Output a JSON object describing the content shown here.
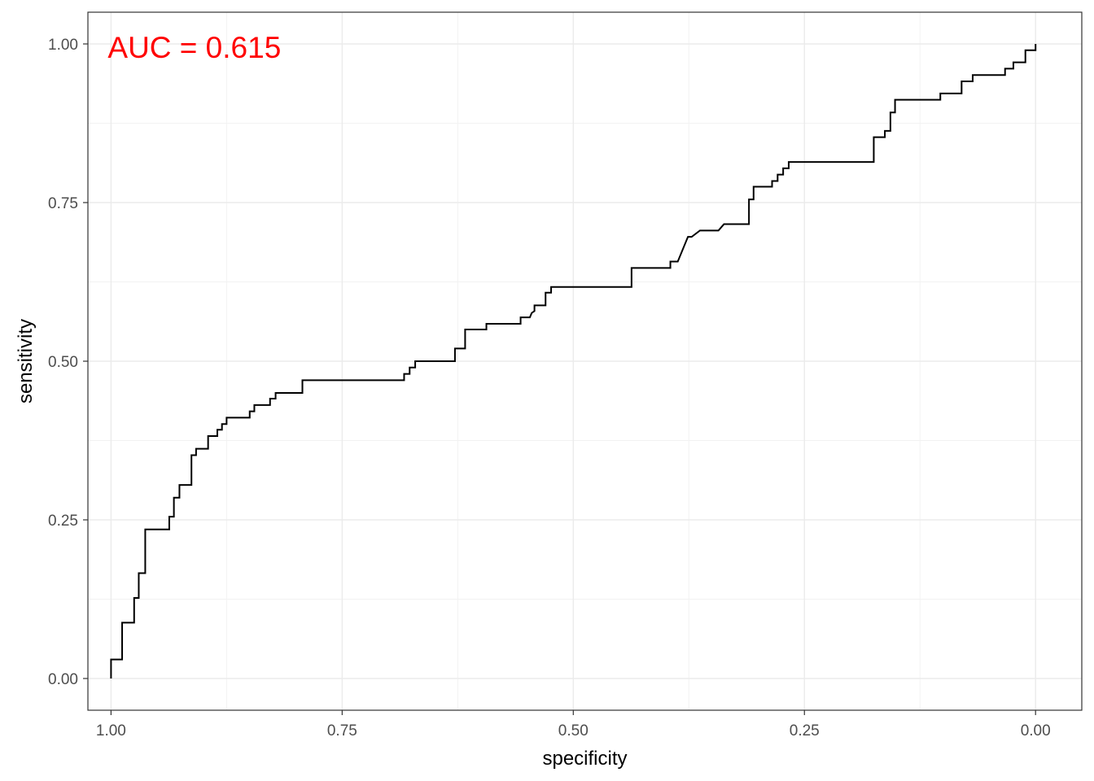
{
  "chart_data": {
    "type": "line",
    "xlabel": "specificity",
    "ylabel": "sensitivity",
    "xlim": [
      1.025,
      -0.05
    ],
    "ylim": [
      -0.05,
      1.05
    ],
    "x_reversed": true,
    "x_ticks": [
      1.0,
      0.75,
      0.5,
      0.25,
      0.0
    ],
    "x_tick_labels": [
      "1.00",
      "0.75",
      "0.50",
      "0.25",
      "0.00"
    ],
    "y_ticks": [
      0.0,
      0.25,
      0.5,
      0.75,
      1.0
    ],
    "y_tick_labels": [
      "0.00",
      "0.25",
      "0.50",
      "0.75",
      "1.00"
    ],
    "x_minor": [
      0.875,
      0.625,
      0.375,
      0.125
    ],
    "y_minor": [
      0.125,
      0.375,
      0.625,
      0.875
    ],
    "grid": true,
    "legend": "none",
    "annotation": {
      "text": "AUC =  0.615",
      "color": "#ff0000",
      "x": 1.0,
      "y": 0.995
    },
    "series": [
      {
        "color": "#000000",
        "points": [
          [
            1.0,
            0.0
          ],
          [
            1.0,
            0.03
          ],
          [
            0.988,
            0.03
          ],
          [
            0.988,
            0.088
          ],
          [
            0.975,
            0.088
          ],
          [
            0.975,
            0.127
          ],
          [
            0.97,
            0.127
          ],
          [
            0.97,
            0.166
          ],
          [
            0.963,
            0.166
          ],
          [
            0.963,
            0.235
          ],
          [
            0.937,
            0.235
          ],
          [
            0.937,
            0.255
          ],
          [
            0.932,
            0.255
          ],
          [
            0.932,
            0.285
          ],
          [
            0.926,
            0.285
          ],
          [
            0.926,
            0.305
          ],
          [
            0.913,
            0.305
          ],
          [
            0.913,
            0.352
          ],
          [
            0.908,
            0.352
          ],
          [
            0.908,
            0.362
          ],
          [
            0.895,
            0.362
          ],
          [
            0.895,
            0.382
          ],
          [
            0.885,
            0.382
          ],
          [
            0.885,
            0.392
          ],
          [
            0.88,
            0.392
          ],
          [
            0.88,
            0.401
          ],
          [
            0.875,
            0.401
          ],
          [
            0.875,
            0.411
          ],
          [
            0.85,
            0.411
          ],
          [
            0.85,
            0.421
          ],
          [
            0.845,
            0.421
          ],
          [
            0.845,
            0.431
          ],
          [
            0.828,
            0.431
          ],
          [
            0.828,
            0.441
          ],
          [
            0.822,
            0.441
          ],
          [
            0.822,
            0.45
          ],
          [
            0.793,
            0.45
          ],
          [
            0.793,
            0.47
          ],
          [
            0.683,
            0.47
          ],
          [
            0.683,
            0.48
          ],
          [
            0.677,
            0.48
          ],
          [
            0.677,
            0.49
          ],
          [
            0.671,
            0.49
          ],
          [
            0.671,
            0.5
          ],
          [
            0.628,
            0.5
          ],
          [
            0.628,
            0.52
          ],
          [
            0.617,
            0.52
          ],
          [
            0.617,
            0.55
          ],
          [
            0.594,
            0.55
          ],
          [
            0.594,
            0.559
          ],
          [
            0.557,
            0.559
          ],
          [
            0.557,
            0.569
          ],
          [
            0.547,
            0.569
          ],
          [
            0.545,
            0.576
          ],
          [
            0.542,
            0.579
          ],
          [
            0.542,
            0.588
          ],
          [
            0.53,
            0.588
          ],
          [
            0.53,
            0.608
          ],
          [
            0.524,
            0.608
          ],
          [
            0.524,
            0.617
          ],
          [
            0.437,
            0.617
          ],
          [
            0.437,
            0.647
          ],
          [
            0.395,
            0.647
          ],
          [
            0.395,
            0.657
          ],
          [
            0.387,
            0.657
          ],
          [
            0.376,
            0.696
          ],
          [
            0.372,
            0.696
          ],
          [
            0.363,
            0.706
          ],
          [
            0.343,
            0.706
          ],
          [
            0.337,
            0.716
          ],
          [
            0.31,
            0.716
          ],
          [
            0.31,
            0.755
          ],
          [
            0.305,
            0.755
          ],
          [
            0.305,
            0.775
          ],
          [
            0.285,
            0.775
          ],
          [
            0.285,
            0.784
          ],
          [
            0.279,
            0.784
          ],
          [
            0.279,
            0.794
          ],
          [
            0.273,
            0.794
          ],
          [
            0.273,
            0.804
          ],
          [
            0.267,
            0.804
          ],
          [
            0.267,
            0.814
          ],
          [
            0.175,
            0.814
          ],
          [
            0.175,
            0.853
          ],
          [
            0.163,
            0.853
          ],
          [
            0.163,
            0.863
          ],
          [
            0.157,
            0.863
          ],
          [
            0.157,
            0.892
          ],
          [
            0.152,
            0.892
          ],
          [
            0.152,
            0.912
          ],
          [
            0.103,
            0.912
          ],
          [
            0.103,
            0.922
          ],
          [
            0.08,
            0.922
          ],
          [
            0.08,
            0.941
          ],
          [
            0.068,
            0.941
          ],
          [
            0.068,
            0.951
          ],
          [
            0.033,
            0.951
          ],
          [
            0.033,
            0.961
          ],
          [
            0.024,
            0.961
          ],
          [
            0.024,
            0.971
          ],
          [
            0.011,
            0.971
          ],
          [
            0.011,
            0.99
          ],
          [
            0.0,
            0.99
          ],
          [
            0.0,
            1.0
          ]
        ]
      }
    ]
  }
}
